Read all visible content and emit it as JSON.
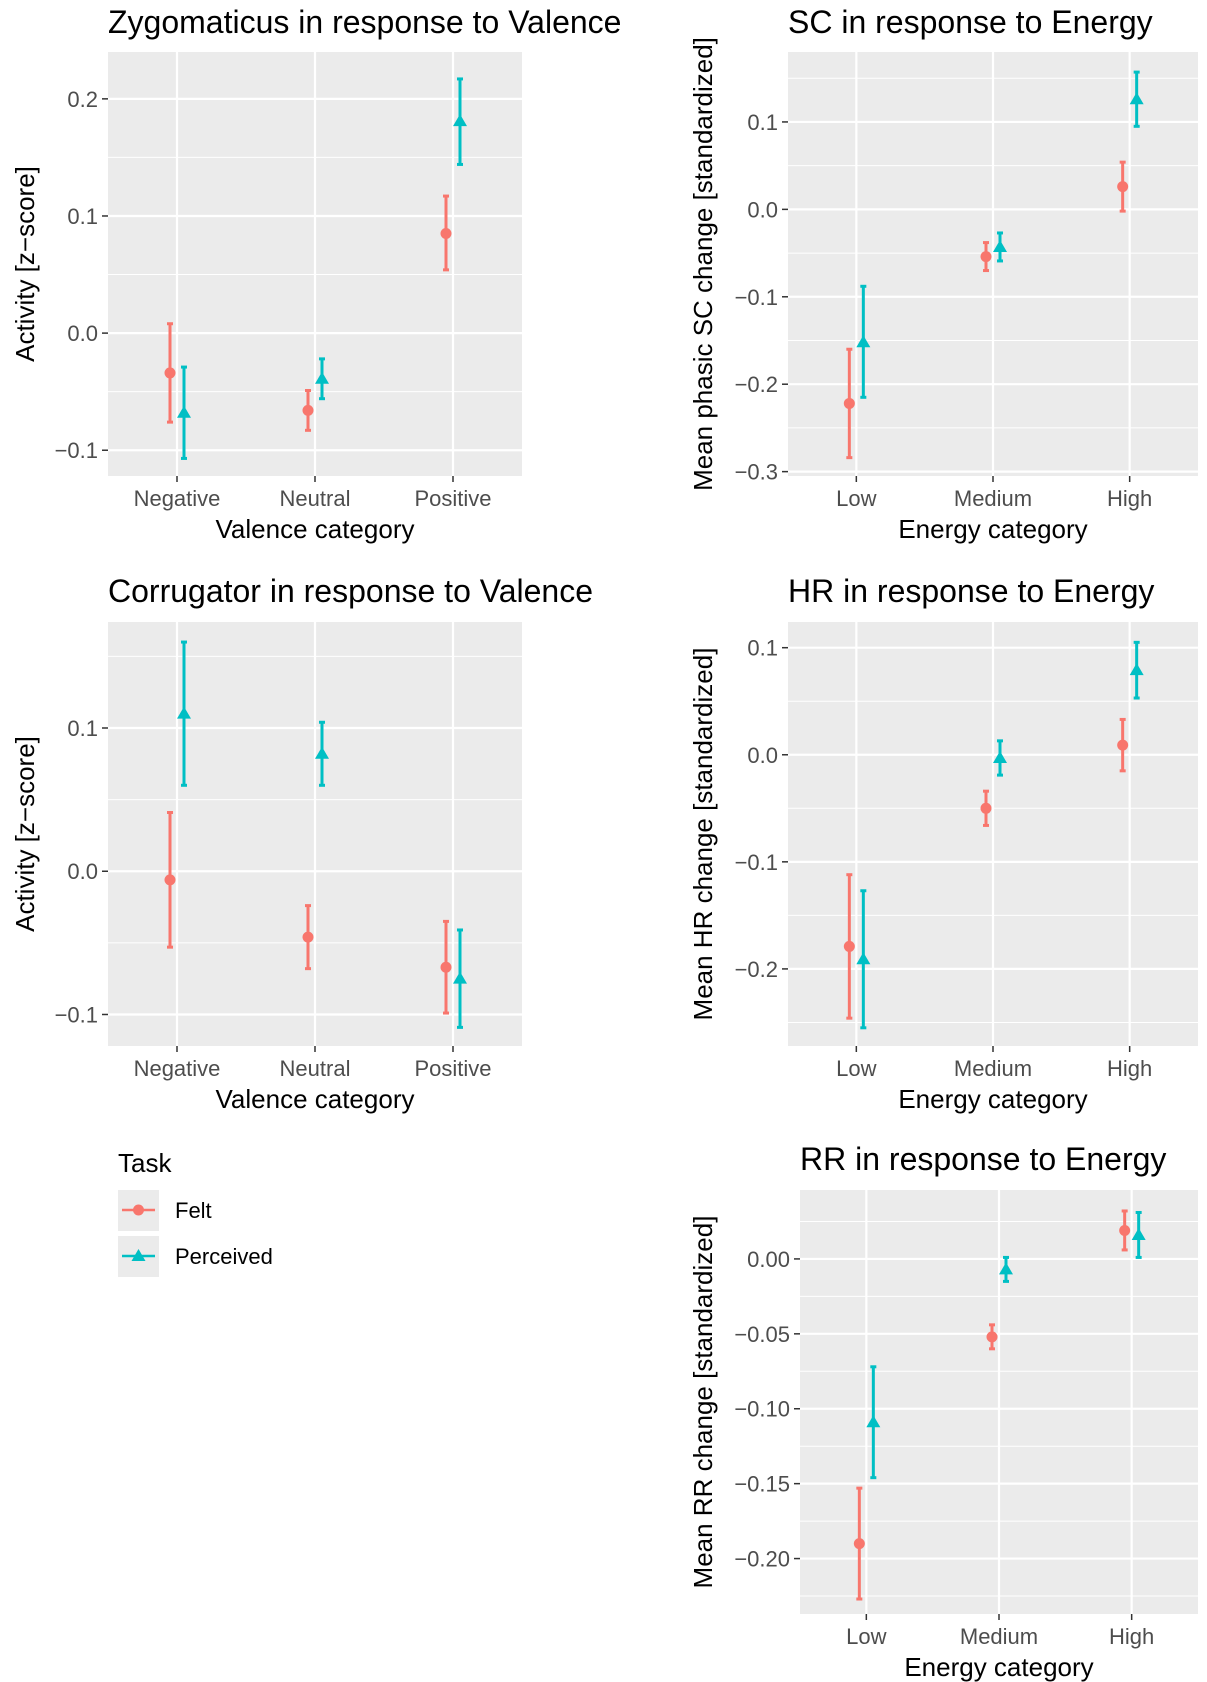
{
  "colors": {
    "felt": "#F8766D",
    "perceived": "#00BFC4",
    "panel_bg": "#EBEBEB",
    "grid": "#FFFFFF"
  },
  "legend": {
    "title": "Task",
    "items": [
      {
        "label": "Felt",
        "color": "#F8766D",
        "shape": "circle"
      },
      {
        "label": "Perceived",
        "color": "#00BFC4",
        "shape": "triangle"
      }
    ]
  },
  "chart_data": [
    {
      "type": "scatter",
      "title": "Zygomaticus in response to Valence",
      "xlabel": "Valence category",
      "ylabel": "Activity [z−score]",
      "categories": [
        "Negative",
        "Neutral",
        "Positive"
      ],
      "ylim": [
        -0.122,
        0.24
      ],
      "yticks": [
        -0.1,
        0.0,
        0.1,
        0.2
      ],
      "yticklabels": [
        "−0.1",
        "0.0",
        "0.1",
        "0.2"
      ],
      "series": [
        {
          "name": "Felt",
          "values": [
            -0.034,
            -0.066,
            0.085
          ],
          "lower": [
            -0.076,
            -0.083,
            0.054
          ],
          "upper": [
            0.008,
            -0.049,
            0.117
          ]
        },
        {
          "name": "Perceived",
          "values": [
            -0.068,
            -0.039,
            0.181
          ],
          "lower": [
            -0.107,
            -0.056,
            0.144
          ],
          "upper": [
            -0.029,
            -0.022,
            0.217
          ]
        }
      ]
    },
    {
      "type": "scatter",
      "title": "SC in response to Energy",
      "xlabel": "Energy category",
      "ylabel": "Mean phasic SC change [standardized]",
      "categories": [
        "Low",
        "Medium",
        "High"
      ],
      "ylim": [
        -0.305,
        0.18
      ],
      "yticks": [
        -0.3,
        -0.2,
        -0.1,
        0.0,
        0.1
      ],
      "yticklabels": [
        "−0.3",
        "−0.2",
        "−0.1",
        "0.0",
        "0.1"
      ],
      "series": [
        {
          "name": "Felt",
          "values": [
            -0.222,
            -0.054,
            0.026
          ],
          "lower": [
            -0.284,
            -0.07,
            -0.002
          ],
          "upper": [
            -0.16,
            -0.038,
            0.054
          ]
        },
        {
          "name": "Perceived",
          "values": [
            -0.152,
            -0.043,
            0.126
          ],
          "lower": [
            -0.215,
            -0.059,
            0.095
          ],
          "upper": [
            -0.088,
            -0.027,
            0.157
          ]
        }
      ]
    },
    {
      "type": "scatter",
      "title": "Corrugator in response to Valence",
      "xlabel": "Valence category",
      "ylabel": "Activity [z−score]",
      "categories": [
        "Negative",
        "Neutral",
        "Positive"
      ],
      "ylim": [
        -0.122,
        0.174
      ],
      "yticks": [
        -0.1,
        0.0,
        0.1
      ],
      "yticklabels": [
        "−0.1",
        "0.0",
        "0.1"
      ],
      "series": [
        {
          "name": "Felt",
          "values": [
            -0.006,
            -0.046,
            -0.067
          ],
          "lower": [
            -0.053,
            -0.068,
            -0.099
          ],
          "upper": [
            0.041,
            -0.024,
            -0.035
          ]
        },
        {
          "name": "Perceived",
          "values": [
            0.11,
            0.082,
            -0.075
          ],
          "lower": [
            0.06,
            0.06,
            -0.109
          ],
          "upper": [
            0.16,
            0.104,
            -0.041
          ]
        }
      ]
    },
    {
      "type": "scatter",
      "title": "HR in response to Energy",
      "xlabel": "Energy category",
      "ylabel": "Mean HR change [standardized]",
      "categories": [
        "Low",
        "Medium",
        "High"
      ],
      "ylim": [
        -0.272,
        0.124
      ],
      "yticks": [
        -0.2,
        -0.1,
        0.0,
        0.1
      ],
      "yticklabels": [
        "−0.2",
        "−0.1",
        "0.0",
        "0.1"
      ],
      "series": [
        {
          "name": "Felt",
          "values": [
            -0.179,
            -0.05,
            0.009
          ],
          "lower": [
            -0.246,
            -0.066,
            -0.015
          ],
          "upper": [
            -0.112,
            -0.034,
            0.033
          ]
        },
        {
          "name": "Perceived",
          "values": [
            -0.191,
            -0.003,
            0.079
          ],
          "lower": [
            -0.255,
            -0.019,
            0.053
          ],
          "upper": [
            -0.127,
            0.013,
            0.105
          ]
        }
      ]
    },
    {
      "type": "scatter",
      "title": "RR in response to Energy",
      "xlabel": "Energy category",
      "ylabel": "Mean RR change [standardized]",
      "categories": [
        "Low",
        "Medium",
        "High"
      ],
      "ylim": [
        -0.237,
        0.046
      ],
      "yticks": [
        -0.2,
        -0.15,
        -0.1,
        -0.05,
        0.0
      ],
      "yticklabels": [
        "−0.20",
        "−0.15",
        "−0.10",
        "−0.05",
        "0.00"
      ],
      "series": [
        {
          "name": "Felt",
          "values": [
            -0.19,
            -0.052,
            0.019
          ],
          "lower": [
            -0.227,
            -0.06,
            0.006
          ],
          "upper": [
            -0.153,
            -0.044,
            0.032
          ]
        },
        {
          "name": "Perceived",
          "values": [
            -0.109,
            -0.007,
            0.016
          ],
          "lower": [
            -0.146,
            -0.015,
            0.001
          ],
          "upper": [
            -0.072,
            0.001,
            0.031
          ]
        }
      ]
    }
  ]
}
